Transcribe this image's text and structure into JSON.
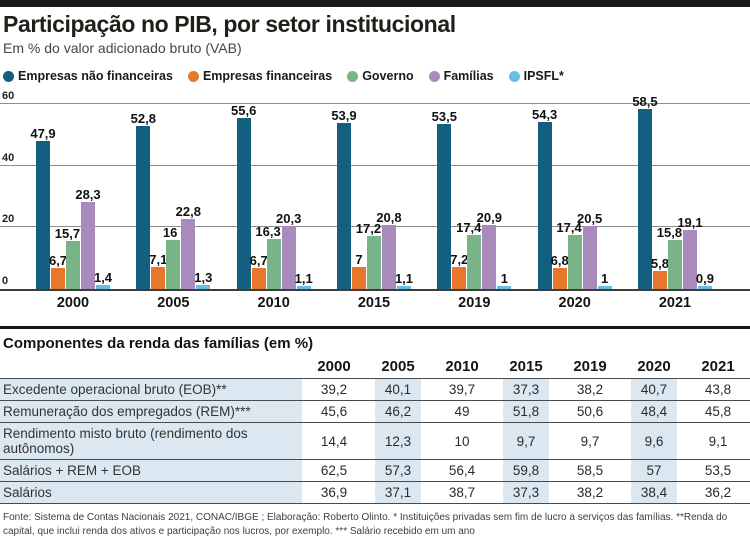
{
  "header": {
    "title": "Participação no PIB, por setor institucional",
    "subtitle": "Em % do valor adicionado bruto (VAB)"
  },
  "chart_data": {
    "type": "bar",
    "title": "Participação no PIB, por setor institucional",
    "subtitle": "Em % do valor adicionado bruto (VAB)",
    "categories": [
      "2000",
      "2005",
      "2010",
      "2015",
      "2019",
      "2020",
      "2021"
    ],
    "series": [
      {
        "name": "Empresas não financeiras",
        "color": "#135f80",
        "values": [
          47.9,
          52.8,
          55.6,
          53.9,
          53.5,
          54.3,
          58.5
        ],
        "labels": [
          "47,9",
          "52,8",
          "55,6",
          "53,9",
          "53,5",
          "54,3",
          "58,5"
        ]
      },
      {
        "name": "Empresas financeiras",
        "color": "#e6772b",
        "values": [
          6.7,
          7.1,
          6.7,
          7.0,
          7.2,
          6.8,
          5.8
        ],
        "labels": [
          "6,7",
          "7,1",
          "6,7",
          "7",
          "7,2",
          "6,8",
          "5,8"
        ]
      },
      {
        "name": "Governo",
        "color": "#79b489",
        "values": [
          15.7,
          16.0,
          16.3,
          17.2,
          17.4,
          17.4,
          15.8
        ],
        "labels": [
          "15,7",
          "16",
          "16,3",
          "17,2",
          "17,4",
          "17,4",
          "15,8"
        ]
      },
      {
        "name": "Famílias",
        "color": "#a98abd",
        "values": [
          28.3,
          22.8,
          20.3,
          20.8,
          20.9,
          20.5,
          19.1
        ],
        "labels": [
          "28,3",
          "22,8",
          "20,3",
          "20,8",
          "20,9",
          "20,5",
          "19,1"
        ]
      },
      {
        "name": "IPSFL*",
        "color": "#62c0e6",
        "values": [
          1.4,
          1.3,
          1.1,
          1.1,
          1.0,
          1.0,
          0.9
        ],
        "labels": [
          "1,4",
          "1,3",
          "1,1",
          "1,1",
          "1",
          "1",
          "0,9"
        ]
      }
    ],
    "yticks": [
      0,
      20,
      40,
      60
    ],
    "ylim": [
      0,
      64
    ],
    "grid": true,
    "legend_position": "top"
  },
  "table": {
    "title": "Componentes da renda das famílias (em %)",
    "stripe_color": "#dbe8f1",
    "columns": [
      "2000",
      "2005",
      "2010",
      "2015",
      "2019",
      "2020",
      "2021"
    ],
    "rows": [
      {
        "label": "Excedente operacional bruto (EOB)**",
        "values": [
          "39,2",
          "40,1",
          "39,7",
          "37,3",
          "38,2",
          "40,7",
          "43,8"
        ]
      },
      {
        "label": "Remuneração dos empregados (REM)***",
        "values": [
          "45,6",
          "46,2",
          "49",
          "51,8",
          "50,6",
          "48,4",
          "45,8"
        ]
      },
      {
        "label": "Rendimento misto bruto (rendimento dos autônomos)",
        "values": [
          "14,4",
          "12,3",
          "10",
          "9,7",
          "9,7",
          "9,6",
          "9,1"
        ]
      },
      {
        "label": "Salários + REM + EOB",
        "values": [
          "62,5",
          "57,3",
          "56,4",
          "59,8",
          "58,5",
          "57",
          "53,5"
        ]
      },
      {
        "label": "Salários",
        "values": [
          "36,9",
          "37,1",
          "38,7",
          "37,3",
          "38,2",
          "38,4",
          "36,2"
        ]
      }
    ]
  },
  "footer": {
    "source": "Fonte: Sistema de Contas Nacionais 2021, CONAC/IBGE ; Elaboração: Roberto Olinto. * Instituições privadas sem fim de lucro a serviços das famílias. **Renda do capital, que inclui renda dos ativos e participação nos lucros, por exemplo. *** Salário recebido em um ano"
  }
}
